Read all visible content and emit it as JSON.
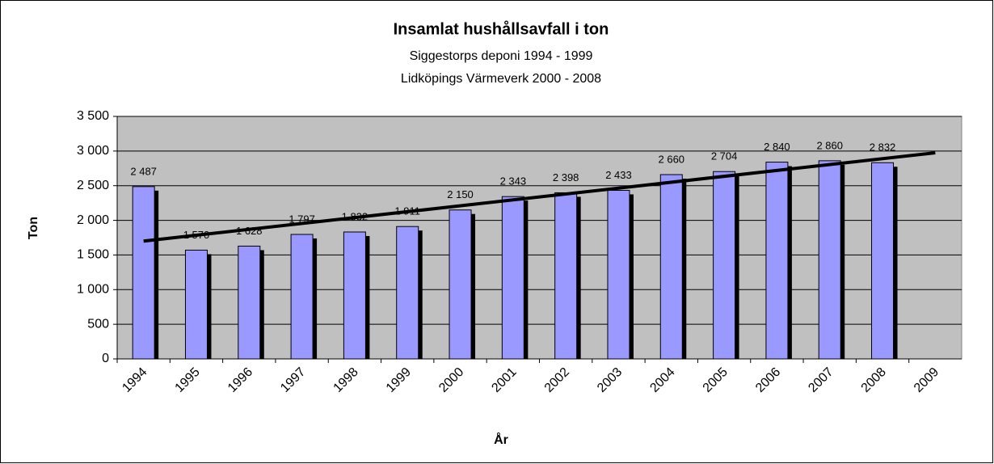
{
  "chart_data": {
    "type": "bar",
    "title": "Insamlat hushållsavfall i ton",
    "subtitle": [
      "Siggestorps deponi 1994 - 1999",
      "Lidköpings Värmeverk 2000 - 2008"
    ],
    "x_label": "År",
    "y_label": "Ton",
    "categories": [
      "1994",
      "1995",
      "1996",
      "1997",
      "1998",
      "1999",
      "2000",
      "2001",
      "2002",
      "2003",
      "2004",
      "2005",
      "2006",
      "2007",
      "2008",
      "2009"
    ],
    "values": [
      2487,
      1570,
      1628,
      1797,
      1832,
      1911,
      2150,
      2343,
      2398,
      2433,
      2660,
      2704,
      2840,
      2860,
      2832,
      null
    ],
    "value_labels": [
      "2 487",
      "1 570",
      "1 628",
      "1 797",
      "1 832",
      "1 911",
      "2 150",
      "2 343",
      "2 398",
      "2 433",
      "2 660",
      "2 704",
      "2 840",
      "2 860",
      "2 832",
      null
    ],
    "color": "#9999ff",
    "trend": [
      1700,
      2975
    ],
    "ylim": [
      0,
      3500
    ],
    "yticks": [
      0,
      500,
      {
        "value": 1000,
        "label": "1 000"
      },
      {
        "value": 1500,
        "label": "1 500"
      },
      {
        "value": 2000,
        "label": "2 000"
      },
      {
        "value": 2500,
        "label": "2 500"
      },
      {
        "value": 3000,
        "label": "3 000"
      },
      {
        "value": 3500,
        "label": "3 500"
      }
    ],
    "grid": true
  }
}
